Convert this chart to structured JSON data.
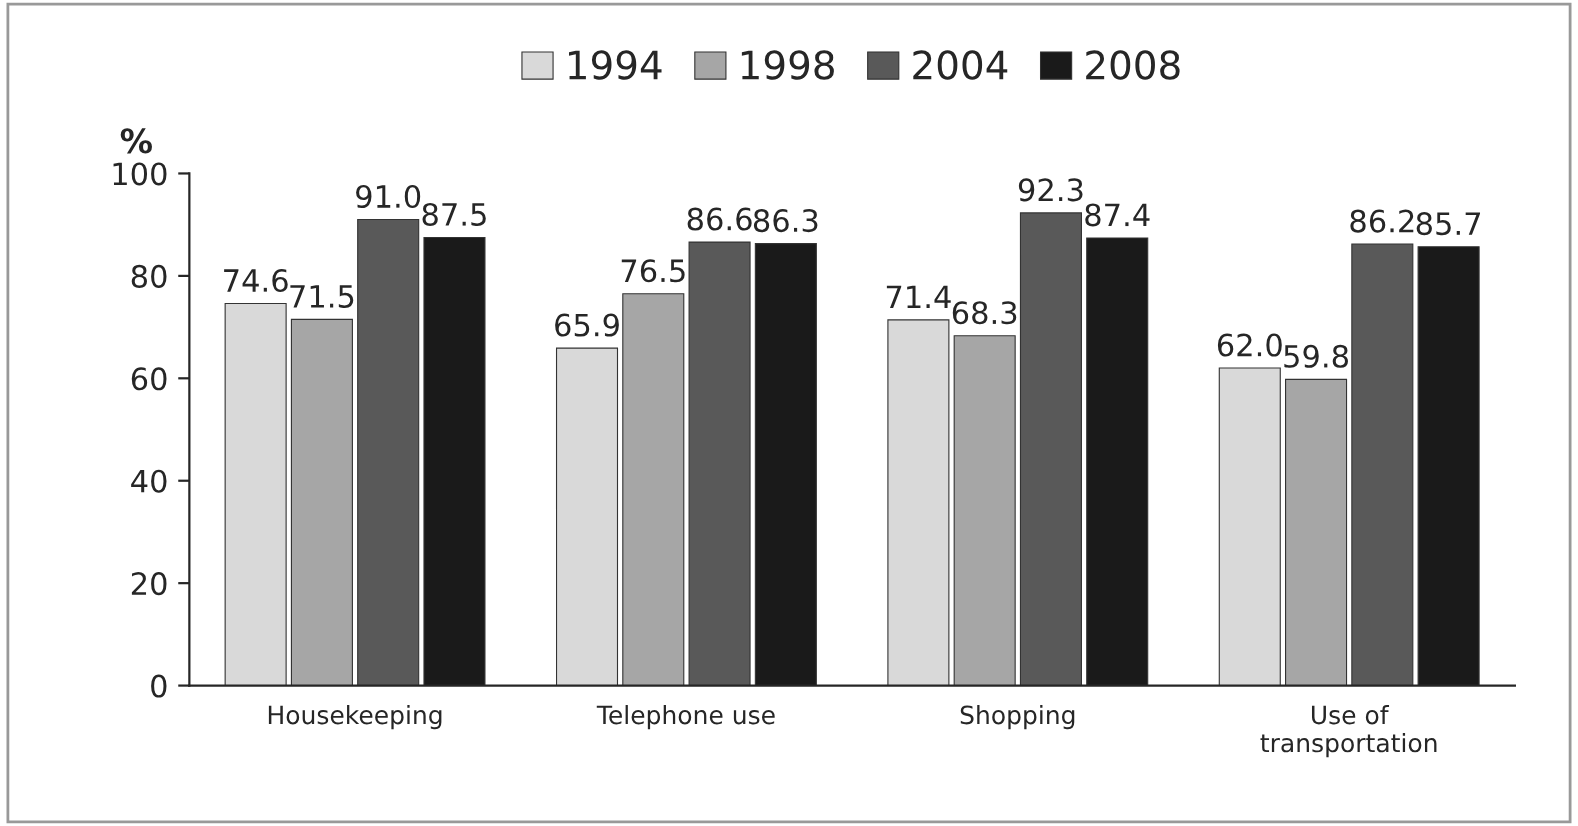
{
  "chart_data": {
    "type": "bar",
    "ylabel": "%",
    "categories": [
      "Housekeeping",
      "Telephone use",
      "Shopping",
      "Use of\ntransportation"
    ],
    "series": [
      {
        "name": "1994",
        "color": "#d9d9d9",
        "values": [
          74.6,
          65.9,
          71.4,
          62.0
        ],
        "value_labels": [
          "74.6",
          "65.9",
          "71.4",
          "62.0"
        ]
      },
      {
        "name": "1998",
        "color": "#a6a6a6",
        "values": [
          71.5,
          76.5,
          68.3,
          59.8
        ],
        "value_labels": [
          "71.5",
          "76.5",
          "68.3",
          "59.8"
        ]
      },
      {
        "name": "2004",
        "color": "#595959",
        "values": [
          91.0,
          86.6,
          92.3,
          86.2
        ],
        "value_labels": [
          "91.0",
          "86.6",
          "92.3",
          "86.2"
        ]
      },
      {
        "name": "2008",
        "color": "#1a1a1a",
        "values": [
          87.5,
          86.3,
          87.4,
          85.7
        ],
        "value_labels": [
          "87.5",
          "86.3",
          "87.4",
          "85.7"
        ]
      }
    ],
    "ylim": [
      0,
      100
    ],
    "yticks": [
      0,
      20,
      40,
      60,
      80,
      100
    ],
    "grid": false,
    "legend": "top"
  }
}
